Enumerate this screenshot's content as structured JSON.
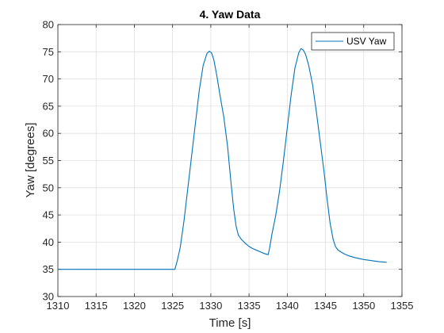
{
  "chart_data": {
    "type": "line",
    "title": "4. Yaw Data",
    "xlabel": "Time [s]",
    "ylabel": "Yaw [degrees]",
    "xlim": [
      1310,
      1355
    ],
    "ylim": [
      30,
      80
    ],
    "xticks": [
      1310,
      1315,
      1320,
      1325,
      1330,
      1335,
      1340,
      1345,
      1350,
      1355
    ],
    "yticks": [
      30,
      35,
      40,
      45,
      50,
      55,
      60,
      65,
      70,
      75,
      80
    ],
    "grid": true,
    "legend_position": "top-right",
    "series": [
      {
        "name": "USV Yaw",
        "color": "#0072BD",
        "x": [
          1310,
          1325.3,
          1325.6,
          1326,
          1326.5,
          1327,
          1327.5,
          1328,
          1328.5,
          1329,
          1329.5,
          1329.8,
          1330.1,
          1330.4,
          1330.8,
          1331.2,
          1331.7,
          1332.2,
          1332.6,
          1333,
          1333.3,
          1333.6,
          1334,
          1334.5,
          1335,
          1335.5,
          1336,
          1336.5,
          1337,
          1337.5,
          1337.7,
          1338,
          1338.5,
          1339,
          1339.5,
          1340,
          1340.5,
          1341,
          1341.5,
          1341.8,
          1342.1,
          1342.4,
          1342.8,
          1343.3,
          1343.8,
          1344.3,
          1344.8,
          1345.2,
          1345.6,
          1346,
          1346.3,
          1346.6,
          1347,
          1347.5,
          1348,
          1349,
          1350,
          1351,
          1352,
          1353
        ],
        "y": [
          35,
          35,
          36.5,
          39,
          44,
          50,
          56,
          62,
          68,
          72.5,
          74.7,
          75.1,
          74.8,
          73.5,
          70.5,
          67,
          63,
          57.5,
          51.5,
          46,
          43,
          41.3,
          40.5,
          39.8,
          39.2,
          38.8,
          38.5,
          38.2,
          37.9,
          37.7,
          39,
          41.5,
          45,
          49.5,
          55,
          61,
          67,
          72,
          74.8,
          75.6,
          75.3,
          74.5,
          72.5,
          69,
          64,
          58.5,
          53,
          48,
          43.5,
          40.5,
          39.2,
          38.6,
          38.2,
          37.8,
          37.5,
          37.1,
          36.8,
          36.6,
          36.4,
          36.3
        ]
      }
    ]
  }
}
